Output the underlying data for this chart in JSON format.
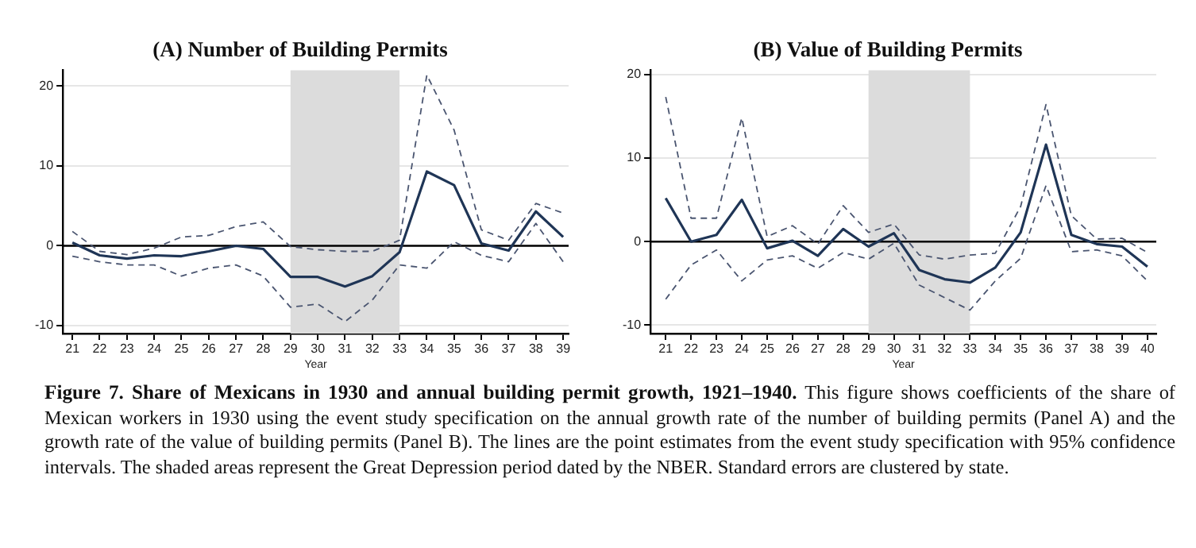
{
  "chart_data": [
    {
      "type": "line",
      "title": "(A) Number of Building Permits",
      "xlabel": "Year",
      "x": [
        21,
        22,
        23,
        24,
        25,
        26,
        27,
        28,
        29,
        30,
        31,
        32,
        33,
        34,
        35,
        36,
        37,
        38,
        39
      ],
      "xlim": [
        20.65,
        39.2
      ],
      "xticks": [
        21,
        22,
        23,
        24,
        25,
        26,
        27,
        28,
        29,
        30,
        31,
        32,
        33,
        34,
        35,
        36,
        37,
        38,
        39
      ],
      "ylim": [
        -11,
        22
      ],
      "yticks": [
        -10,
        0,
        10,
        20
      ],
      "grid": "y",
      "legend": false,
      "marker": "none",
      "series": [
        {
          "color": "#1f3556",
          "line_style": "solid",
          "values": [
            0.4,
            -1.2,
            -1.6,
            -1.2,
            -1.3,
            -0.7,
            0,
            -0.4,
            -3.9,
            -3.9,
            -5.1,
            -3.8,
            -0.8,
            9.3,
            7.6,
            0.3,
            -0.6,
            4.3,
            1.1
          ]
        },
        {
          "color": "#4a5570",
          "line_style": "dashed",
          "values": [
            1.8,
            -0.7,
            -1.1,
            -0.3,
            1.1,
            1.3,
            2.4,
            3.0,
            -0.1,
            -0.5,
            -0.7,
            -0.7,
            0.7,
            21.4,
            14.5,
            2.0,
            0.7,
            5.3,
            4.1
          ]
        },
        {
          "color": "#4a5570",
          "line_style": "dashed",
          "values": [
            -1.3,
            -2.0,
            -2.4,
            -2.4,
            -3.8,
            -2.8,
            -2.4,
            -3.8,
            -7.7,
            -7.3,
            -9.5,
            -6.8,
            -2.4,
            -2.8,
            0.5,
            -1.2,
            -2.0,
            2.8,
            -2.0
          ]
        }
      ],
      "bands": [
        {
          "axis": "x",
          "from": 29,
          "to": 33,
          "color": "#dcdcdc"
        }
      ],
      "ref_lines": [
        {
          "axis": "y",
          "value": 0,
          "color": "#000000"
        }
      ]
    },
    {
      "type": "line",
      "title": "(B) Value of Building Permits",
      "xlabel": "Year",
      "x": [
        21,
        22,
        23,
        24,
        25,
        26,
        27,
        28,
        29,
        30,
        31,
        32,
        33,
        34,
        35,
        36,
        37,
        38,
        39,
        40
      ],
      "xlim": [
        20.4,
        40.35
      ],
      "xticks": [
        21,
        22,
        23,
        24,
        25,
        26,
        27,
        28,
        29,
        30,
        31,
        32,
        33,
        34,
        35,
        36,
        37,
        38,
        39,
        40
      ],
      "ylim": [
        -11,
        20.5
      ],
      "yticks": [
        -10,
        0,
        10,
        20
      ],
      "grid": "y",
      "legend": false,
      "marker": "none",
      "series": [
        {
          "color": "#1f3556",
          "line_style": "solid",
          "values": [
            5.2,
            0,
            0.8,
            5.0,
            -0.8,
            0.1,
            -1.7,
            1.5,
            -0.6,
            1.0,
            -3.4,
            -4.5,
            -4.9,
            -3.1,
            1.1,
            11.6,
            0.8,
            -0.3,
            -0.6,
            -3.0
          ]
        },
        {
          "color": "#4a5570",
          "line_style": "dashed",
          "values": [
            17.3,
            2.8,
            2.8,
            14.8,
            0.6,
            1.9,
            -0.3,
            4.3,
            1.1,
            2.1,
            -1.6,
            -2.1,
            -1.6,
            -1.4,
            4.2,
            16.4,
            3.1,
            0.3,
            0.4,
            -1.3
          ]
        },
        {
          "color": "#4a5570",
          "line_style": "dashed",
          "values": [
            -6.9,
            -2.8,
            -1.0,
            -4.7,
            -2.2,
            -1.7,
            -3.2,
            -1.3,
            -2.1,
            -0.2,
            -5.2,
            -6.7,
            -8.2,
            -4.7,
            -2.0,
            6.7,
            -1.2,
            -1.0,
            -1.7,
            -4.7
          ]
        }
      ],
      "bands": [
        {
          "axis": "x",
          "from": 29,
          "to": 33,
          "color": "#dcdcdc"
        }
      ],
      "ref_lines": [
        {
          "axis": "y",
          "value": 0,
          "color": "#000000"
        }
      ]
    },
    {
      "type": "other",
      "annotations": [
        "Figure 7. Share of Mexicans in 1930 and annual building permit growth, 1921–1940.",
        "This figure shows coefficients of the share of Mexican workers in 1930 using the event study specification on the annual growth rate of the number of building permits (Panel A) and the growth rate of the value of building permits (Panel B). The lines are the point estimates from the event study specification with 95% confidence intervals. The shaded areas represent the Great Depression period dated by the NBER. Standard errors are clustered by state."
      ]
    }
  ]
}
